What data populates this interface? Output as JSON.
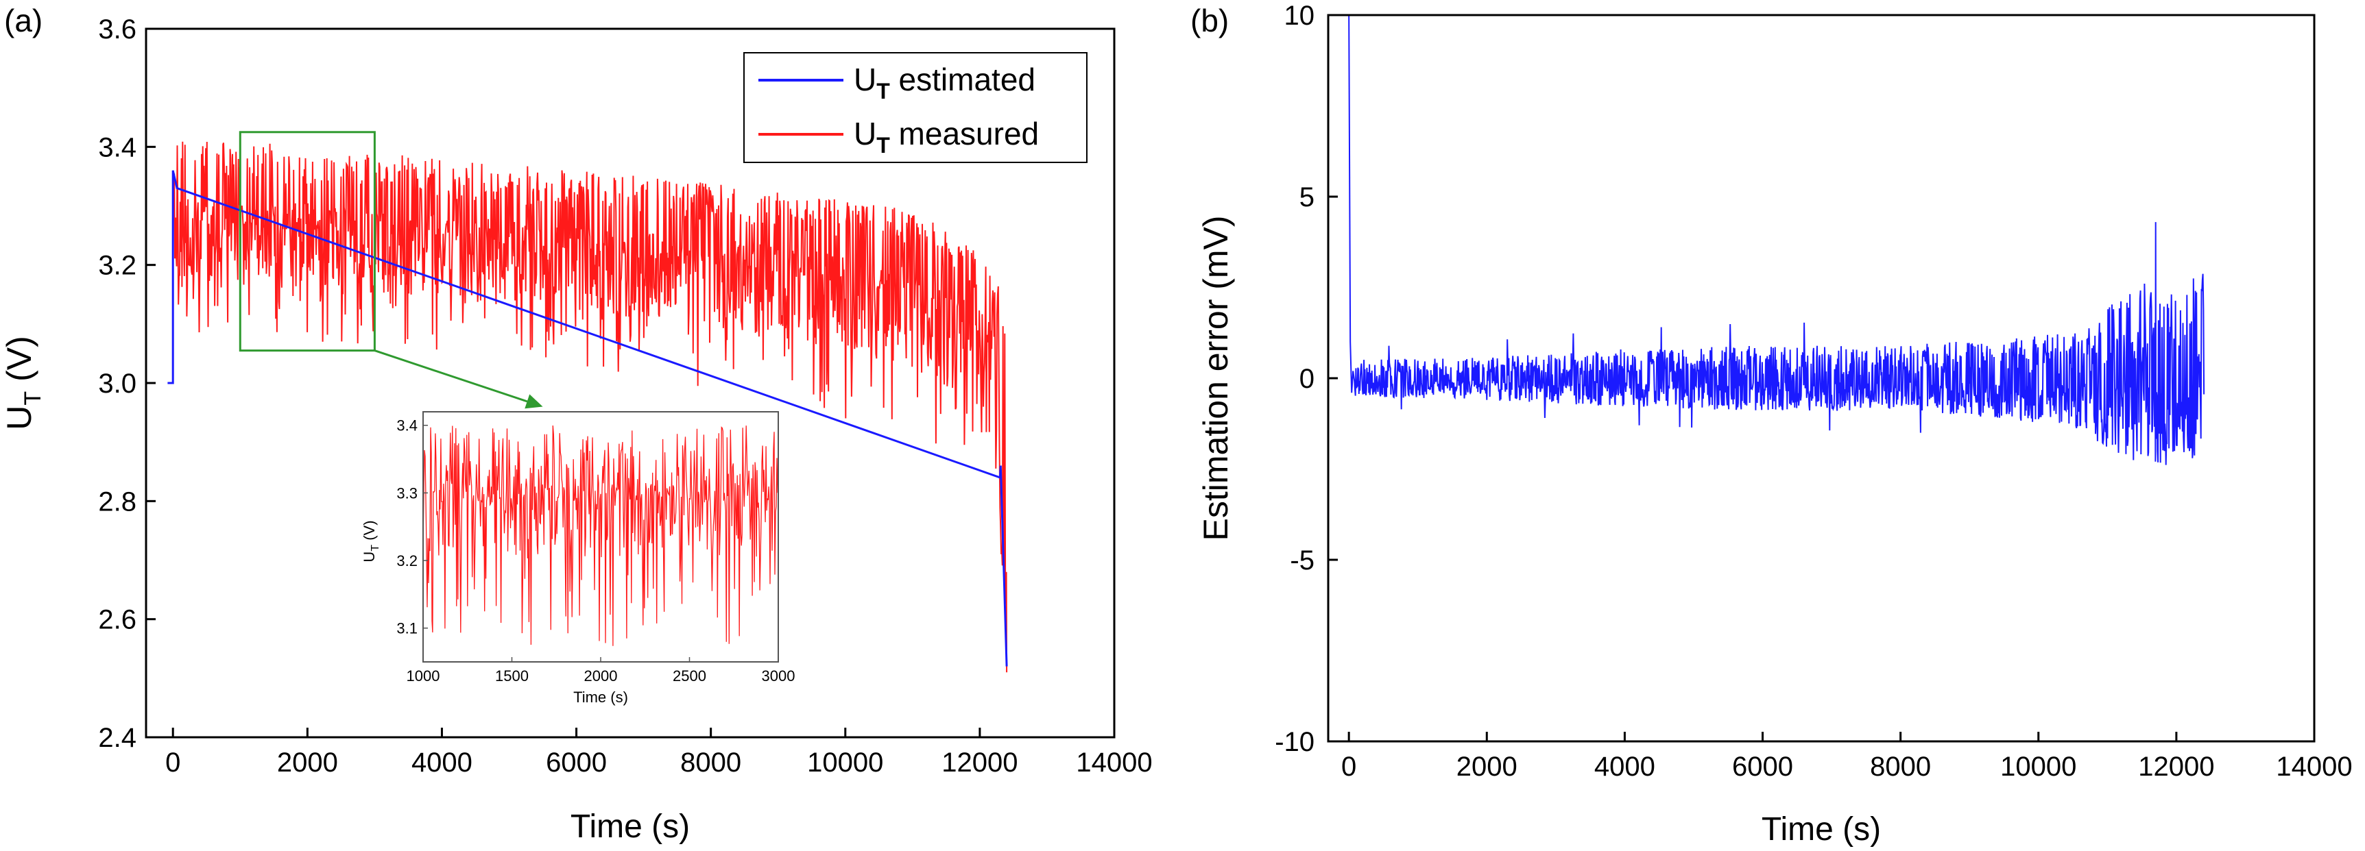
{
  "figure": {
    "panel_a_label": "(a)",
    "panel_b_label": "(b)"
  },
  "chart_data": [
    {
      "id": "a",
      "type": "line",
      "xlabel": "Time (s)",
      "ylabel_main": "U",
      "ylabel_sub": "T",
      "ylabel_unit": " (V)",
      "xlim": [
        -400,
        14000
      ],
      "ylim": [
        2.4,
        3.6
      ],
      "xticks": [
        0,
        2000,
        4000,
        6000,
        8000,
        10000,
        12000,
        14000
      ],
      "xtick_labels": [
        "0",
        "2000",
        "4000",
        "6000",
        "8000",
        "10000",
        "12000",
        "14000"
      ],
      "yticks": [
        2.4,
        2.6,
        2.8,
        3.0,
        3.2,
        3.4,
        3.6
      ],
      "ytick_labels": [
        "2.4",
        "2.6",
        "2.8",
        "3.0",
        "3.2",
        "3.4",
        "3.6"
      ],
      "legend": [
        {
          "main": "U",
          "sub": "T",
          "rest": " estimated",
          "color": "#1a1aff"
        },
        {
          "main": "U",
          "sub": "T",
          "rest": " measured",
          "color": "#ff1a1a"
        }
      ],
      "legend_position": "top-right",
      "series": [
        {
          "name": "U_T estimated",
          "color": "#1a1aff",
          "x": [
            -80,
            0,
            0,
            60,
            12300,
            12310,
            12400
          ],
          "y": [
            3.0,
            3.0,
            3.36,
            3.33,
            2.84,
            2.86,
            2.52
          ]
        },
        {
          "name": "U_T measured",
          "color": "#ff1a1a",
          "x": [
            0,
            1000,
            2000,
            3000,
            4000,
            5000,
            6000,
            7000,
            8000,
            9000,
            10000,
            11000,
            11500,
            12000,
            12200,
            12380,
            12400
          ],
          "y": [
            3.3,
            3.29,
            3.28,
            3.27,
            3.26,
            3.25,
            3.24,
            3.23,
            3.22,
            3.21,
            3.19,
            3.17,
            3.14,
            3.1,
            3.08,
            2.7,
            2.51
          ]
        }
      ],
      "envelope": {
        "x": [
          0,
          2000,
          4000,
          6000,
          8000,
          10000,
          11000,
          12000,
          12400
        ],
        "upper": [
          3.42,
          3.4,
          3.38,
          3.36,
          3.34,
          3.31,
          3.3,
          3.22,
          3.14
        ],
        "lower": [
          3.08,
          3.07,
          3.05,
          3.03,
          2.99,
          2.94,
          2.9,
          2.85,
          2.51
        ]
      },
      "zoom_box": {
        "x": [
          1000,
          3000
        ],
        "y": [
          3.055,
          3.425
        ]
      },
      "arrow": {
        "from": [
          3000,
          3.055
        ],
        "to": [
          5500,
          2.96
        ],
        "color": "#2f9a2f"
      },
      "inset": {
        "xlabel": "Time (s)",
        "ylabel_main": "U",
        "ylabel_sub": "T",
        "ylabel_unit": " (V)",
        "xlim": [
          1000,
          3000
        ],
        "ylim": [
          3.05,
          3.42
        ],
        "xticks": [
          1000,
          1500,
          2000,
          2500,
          3000
        ],
        "xtick_labels": [
          "1000",
          "1500",
          "2000",
          "2500",
          "3000"
        ],
        "yticks": [
          3.1,
          3.2,
          3.3,
          3.4
        ],
        "ytick_labels": [
          "3.1",
          "3.2",
          "3.3",
          "3.4"
        ]
      }
    },
    {
      "id": "b",
      "type": "line",
      "xlabel": "Time (s)",
      "ylabel": "Estimation error (mV)",
      "xlim": [
        -300,
        14000
      ],
      "ylim": [
        -10,
        10
      ],
      "xticks": [
        0,
        2000,
        4000,
        6000,
        8000,
        10000,
        12000,
        14000
      ],
      "xtick_labels": [
        "0",
        "2000",
        "4000",
        "6000",
        "8000",
        "10000",
        "12000",
        "14000"
      ],
      "yticks": [
        -10,
        -5,
        0,
        5,
        10
      ],
      "ytick_labels": [
        "-10",
        "-5",
        "0",
        "5",
        "10"
      ],
      "series": [
        {
          "name": "Estimation error",
          "color": "#1a1aff",
          "x": [
            0,
            30,
            60,
            2000,
            4000,
            6000,
            8000,
            10000,
            11000,
            11700,
            12000,
            12400
          ],
          "y": [
            10,
            1.0,
            0.1,
            0.1,
            0.0,
            0.1,
            0.1,
            0.0,
            0.1,
            4.3,
            0.2,
            0.0
          ]
        }
      ],
      "envelope": {
        "x": [
          100,
          2000,
          4000,
          6000,
          8000,
          9500,
          10500,
          11000,
          11500,
          12000,
          12400
        ],
        "upper": [
          0.5,
          0.6,
          0.8,
          0.9,
          0.9,
          1.1,
          1.3,
          2.0,
          2.6,
          2.8,
          2.9
        ],
        "lower": [
          -0.5,
          -0.6,
          -0.8,
          -0.9,
          -0.9,
          -1.1,
          -1.4,
          -2.0,
          -2.4,
          -2.5,
          -2.3
        ]
      }
    }
  ]
}
